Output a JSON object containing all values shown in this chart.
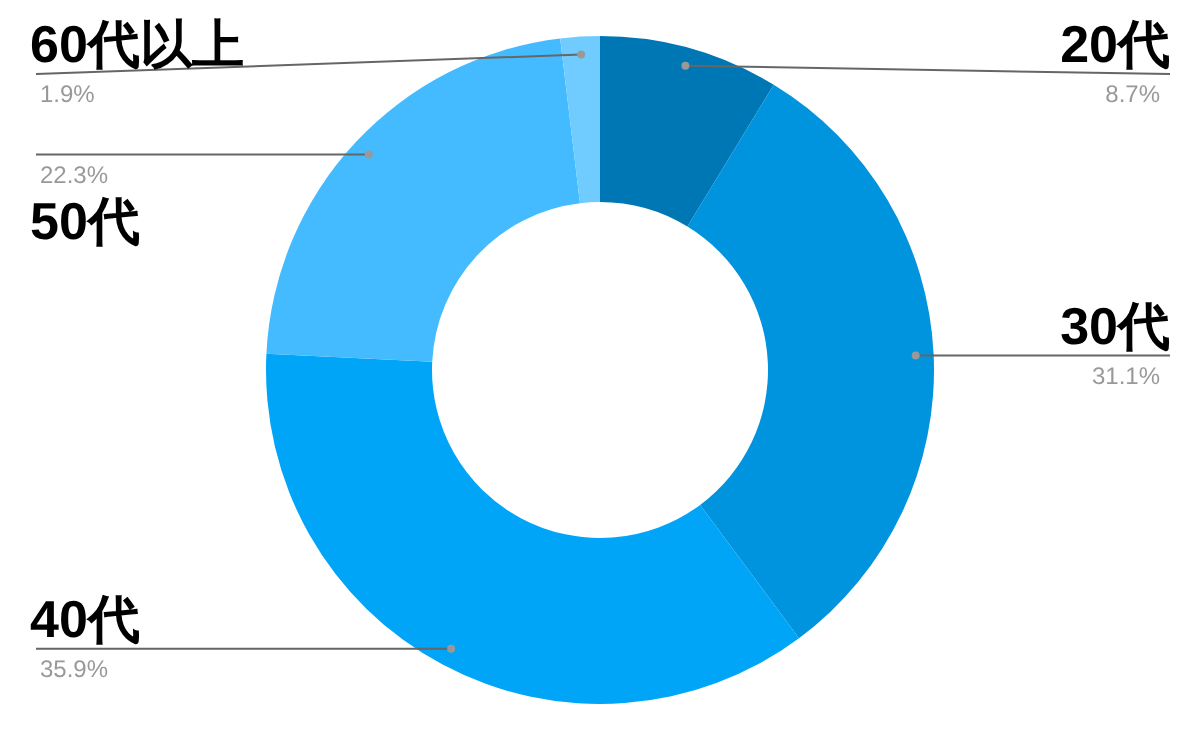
{
  "chart_data": {
    "type": "donut",
    "categories": [
      "20代",
      "30代",
      "40代",
      "50代",
      "60代以上"
    ],
    "values": [
      8.7,
      31.1,
      35.9,
      22.3,
      1.9
    ],
    "value_labels": [
      "8.7%",
      "31.1%",
      "35.9%",
      "22.3%",
      "1.9%"
    ],
    "colors": [
      "#0077b5",
      "#0093de",
      "#00a5f8",
      "#44bbff",
      "#70ccff"
    ],
    "legend": false
  }
}
